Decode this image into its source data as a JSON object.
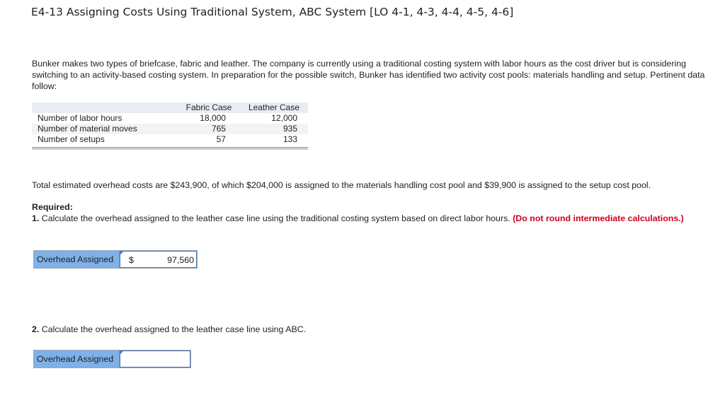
{
  "title": "E4-13 Assigning Costs Using Traditional System, ABC System [LO 4-1, 4-3, 4-4, 4-5, 4-6]",
  "intro": "Bunker makes two types of briefcase, fabric and leather. The company is currently using a traditional costing system with labor hours as the cost driver but is considering switching to an activity-based costing system. In preparation for the possible switch, Bunker has identified two activity cost pools: materials handling and setup. Pertinent data follow:",
  "table": {
    "headers": [
      "",
      "Fabric Case",
      "Leather Case"
    ],
    "rows": [
      [
        "Number of labor hours",
        "18,000",
        "12,000"
      ],
      [
        "Number of material moves",
        "765",
        "935"
      ],
      [
        "Number of setups",
        "57",
        "133"
      ]
    ]
  },
  "overhead_text": "Total estimated overhead costs are $243,900, of which $204,000 is assigned to the materials handling cost pool and $39,900 is assigned to the setup cost pool.",
  "required_label": "Required:",
  "q1": {
    "num": "1.",
    "text": "Calculate the overhead assigned to the leather case line using the traditional costing system based on direct labor hours.",
    "note": "(Do not round intermediate calculations.)",
    "label": "Overhead Assigned",
    "currency": "$",
    "value": "97,560"
  },
  "q2": {
    "num": "2.",
    "text": "Calculate the overhead assigned to the leather case line using ABC.",
    "label": "Overhead Assigned",
    "value": ""
  }
}
